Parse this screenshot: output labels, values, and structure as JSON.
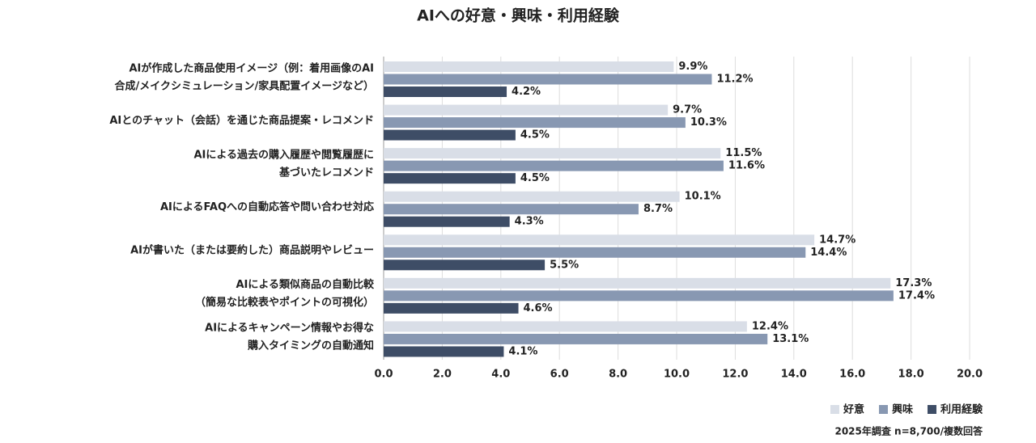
{
  "chart_data": {
    "type": "bar",
    "orientation": "horizontal",
    "title": "AIへの好意・興味・利用経験",
    "categories": [
      [
        "AIが作成した商品使用イメージ（例：着用画像のAI",
        "合成/メイクシミュレーション/家具配置イメージなど）"
      ],
      [
        "AIとのチャット（会話）を通じた商品提案・レコメンド"
      ],
      [
        "AIによる過去の購入履歴や閲覧履歴に",
        "基づいたレコメンド"
      ],
      [
        "AIによるFAQへの自動応答や問い合わせ対応"
      ],
      [
        "AIが書いた（または要約した）商品説明やレビュー"
      ],
      [
        "AIによる類似商品の自動比較",
        "（簡易な比較表やポイントの可視化）"
      ],
      [
        "AIによるキャンペーン情報やお得な",
        "購入タイミングの自動通知"
      ]
    ],
    "series": [
      {
        "name": "好意",
        "color": "#d9dee7",
        "values": [
          9.9,
          9.7,
          11.5,
          10.1,
          14.7,
          17.3,
          12.4
        ],
        "value_labels": [
          "9.9%",
          "9.7%",
          "11.5%",
          "10.1%",
          "14.7%",
          "17.3%",
          "12.4%"
        ]
      },
      {
        "name": "興味",
        "color": "#8898b2",
        "values": [
          11.2,
          10.3,
          11.6,
          8.7,
          14.4,
          17.4,
          13.1
        ],
        "value_labels": [
          "11.2%",
          "10.3%",
          "11.6%",
          "8.7%",
          "14.4%",
          "17.4%",
          "13.1%"
        ]
      },
      {
        "name": "利用経験",
        "color": "#3e4d66",
        "values": [
          4.2,
          4.5,
          4.5,
          4.3,
          5.5,
          4.6,
          4.1
        ],
        "value_labels": [
          "4.2%",
          "4.5%",
          "4.5%",
          "4.3%",
          "5.5%",
          "4.6%",
          "4.1%"
        ]
      }
    ],
    "xlim": [
      0,
      20
    ],
    "xticks": [
      {
        "value": 0,
        "label": "0.0"
      },
      {
        "value": 2,
        "label": "2.0"
      },
      {
        "value": 4,
        "label": "4.0"
      },
      {
        "value": 6,
        "label": "6.0"
      },
      {
        "value": 8,
        "label": "8.0"
      },
      {
        "value": 10,
        "label": "10.0"
      },
      {
        "value": 12,
        "label": "12.0"
      },
      {
        "value": 14,
        "label": "14.0"
      },
      {
        "value": 16,
        "label": "16.0"
      },
      {
        "value": 18,
        "label": "18.0"
      },
      {
        "value": 20,
        "label": "20.0"
      }
    ],
    "grid": true,
    "legend": "bottom-right",
    "note": "2025年調査 n=8,700/複数回答"
  }
}
